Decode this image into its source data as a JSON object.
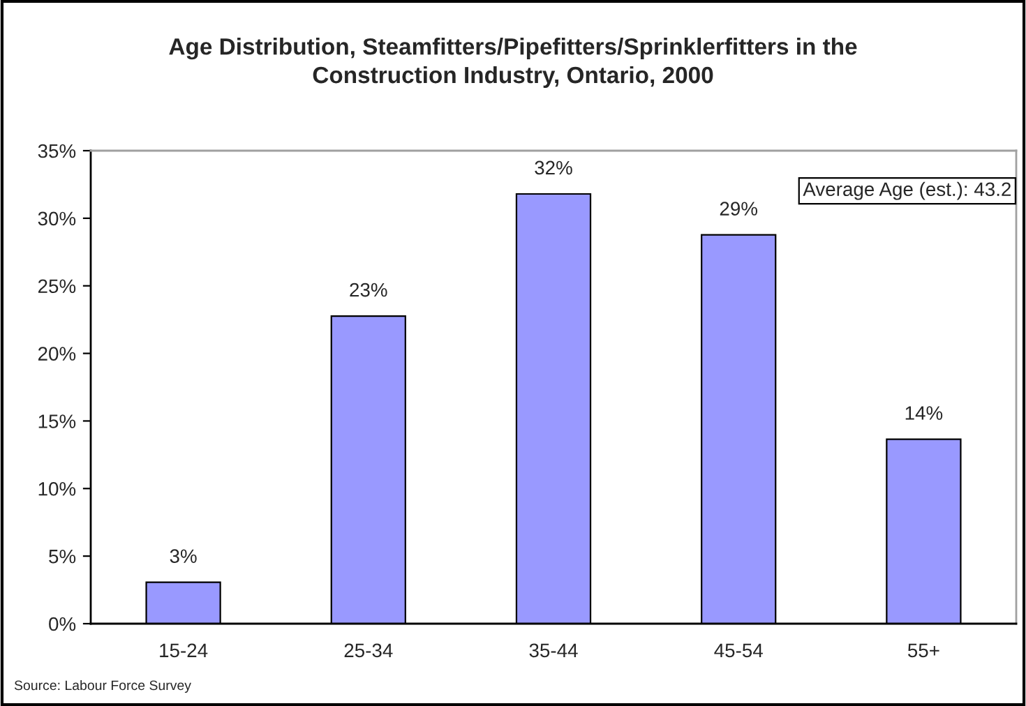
{
  "chart_data": {
    "type": "bar",
    "title": "Age Distribution, Steamfitters/Pipefitters/Sprinklerfitters in the\nConstruction Industry, Ontario, 2000",
    "categories": [
      "15-24",
      "25-34",
      "35-44",
      "45-54",
      "55+"
    ],
    "values": [
      3.06,
      22.76,
      31.8,
      28.77,
      13.65
    ],
    "value_labels": [
      "3%",
      "23%",
      "32%",
      "29%",
      "14%"
    ],
    "color": "#9999ff",
    "ylim": [
      0,
      35
    ],
    "yticks": [
      {
        "value": 0,
        "label": "0%"
      },
      {
        "value": 5,
        "label": "5%"
      },
      {
        "value": 10,
        "label": "10%"
      },
      {
        "value": 15,
        "label": "15%"
      },
      {
        "value": 20,
        "label": "20%"
      },
      {
        "value": 25,
        "label": "25%"
      },
      {
        "value": 30,
        "label": "30%"
      },
      {
        "value": 35,
        "label": "35%"
      }
    ],
    "grid": false,
    "legend": false,
    "annotations": [
      "Average Age (est.): 43.2",
      "Source: Labour Force Survey"
    ]
  }
}
